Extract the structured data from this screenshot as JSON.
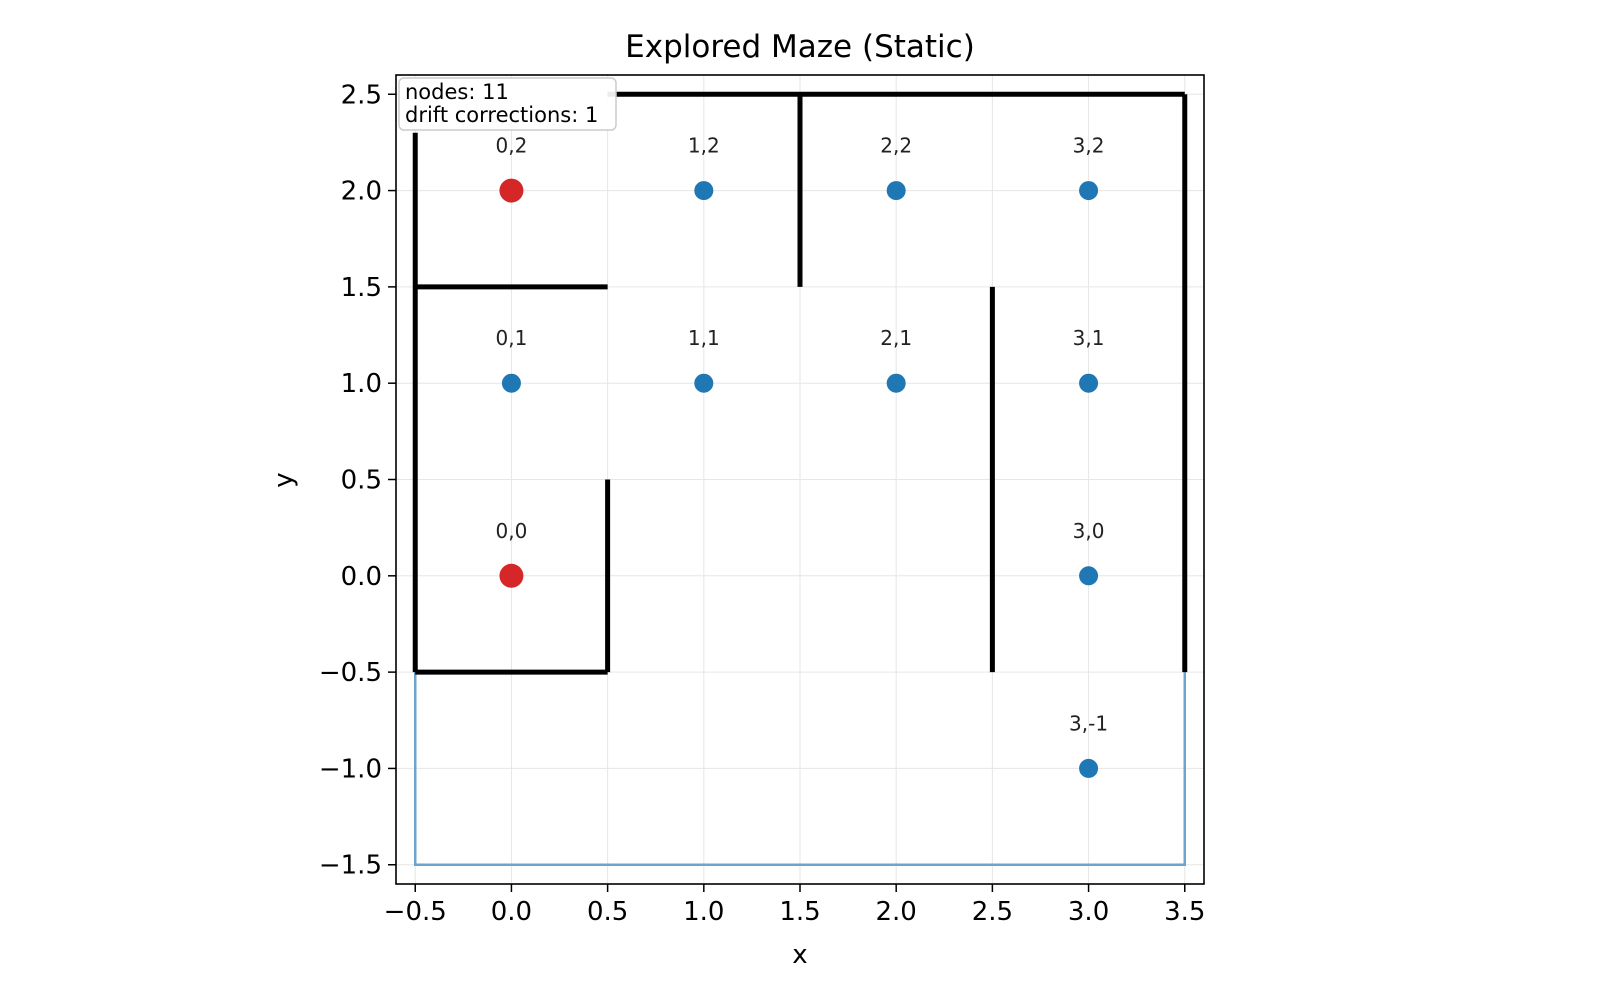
{
  "chart_data": {
    "type": "scatter",
    "title": "Explored Maze (Static)",
    "xlabel": "x",
    "ylabel": "y",
    "xlim": [
      -0.6,
      3.6
    ],
    "ylim": [
      -1.6,
      2.6
    ],
    "xticks": [
      -0.5,
      0.0,
      0.5,
      1.0,
      1.5,
      2.0,
      2.5,
      3.0,
      3.5
    ],
    "xtick_labels": [
      "−0.5",
      "0.0",
      "0.5",
      "1.0",
      "1.5",
      "2.0",
      "2.5",
      "3.0",
      "3.5"
    ],
    "yticks": [
      2.5,
      2.0,
      1.5,
      1.0,
      0.5,
      0.0,
      -0.5,
      -1.0,
      -1.5
    ],
    "ytick_labels": [
      "2.5",
      "2.0",
      "1.5",
      "1.0",
      "0.5",
      "0.0",
      "−0.5",
      "−1.0",
      "−1.5"
    ],
    "grid": true,
    "info_box": {
      "position": "top-left",
      "lines": [
        "nodes: 11",
        "drift corrections: 1"
      ]
    },
    "colors": {
      "node": "#1f77b4",
      "special_node": "#d62728",
      "wall": "#000000",
      "boundary": "#6fa3c9",
      "grid": "#e6e6e6"
    },
    "nodes": [
      {
        "x": 0,
        "y": 2,
        "label": "0,2",
        "highlight": true
      },
      {
        "x": 1,
        "y": 2,
        "label": "1,2",
        "highlight": false
      },
      {
        "x": 2,
        "y": 2,
        "label": "2,2",
        "highlight": false
      },
      {
        "x": 3,
        "y": 2,
        "label": "3,2",
        "highlight": false
      },
      {
        "x": 0,
        "y": 1,
        "label": "0,1",
        "highlight": false
      },
      {
        "x": 1,
        "y": 1,
        "label": "1,1",
        "highlight": false
      },
      {
        "x": 2,
        "y": 1,
        "label": "2,1",
        "highlight": false
      },
      {
        "x": 3,
        "y": 1,
        "label": "3,1",
        "highlight": false
      },
      {
        "x": 0,
        "y": 0,
        "label": "0,0",
        "highlight": true
      },
      {
        "x": 3,
        "y": 0,
        "label": "3,0",
        "highlight": false
      },
      {
        "x": 3,
        "y": -1,
        "label": "3,-1",
        "highlight": false
      }
    ],
    "walls": [
      [
        [
          0.5,
          2.5
        ],
        [
          3.5,
          2.5
        ]
      ],
      [
        [
          -0.5,
          -0.5
        ],
        [
          -0.5,
          2.3
        ]
      ],
      [
        [
          1.5,
          2.5
        ],
        [
          1.5,
          1.5
        ]
      ],
      [
        [
          3.5,
          2.5
        ],
        [
          3.5,
          -0.5
        ]
      ],
      [
        [
          -0.5,
          1.5
        ],
        [
          0.5,
          1.5
        ]
      ],
      [
        [
          2.5,
          1.5
        ],
        [
          2.5,
          -0.5
        ]
      ],
      [
        [
          0.5,
          0.5
        ],
        [
          0.5,
          -0.5
        ]
      ],
      [
        [
          -0.5,
          -0.5
        ],
        [
          0.5,
          -0.5
        ]
      ]
    ],
    "boundary": [
      [
        -0.5,
        -0.5
      ],
      [
        -0.5,
        -1.5
      ],
      [
        3.5,
        -1.5
      ],
      [
        3.5,
        -0.5
      ]
    ]
  }
}
